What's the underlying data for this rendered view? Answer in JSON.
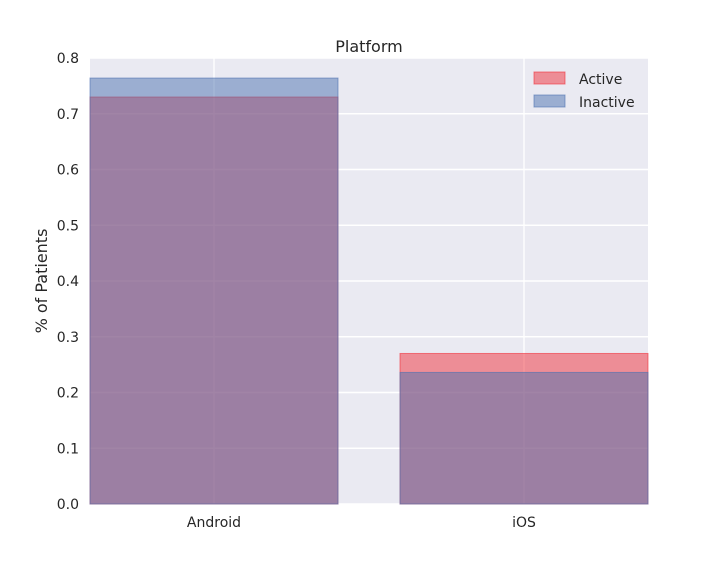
{
  "chart_data": {
    "type": "bar",
    "title": "Platform",
    "xlabel": "",
    "ylabel": "% of Patients",
    "categories": [
      "Android",
      "iOS"
    ],
    "ylim": [
      0.0,
      0.8
    ],
    "yticks": [
      "0.0",
      "0.1",
      "0.2",
      "0.3",
      "0.4",
      "0.5",
      "0.6",
      "0.7",
      "0.8"
    ],
    "grid": true,
    "legend_position": "top-right",
    "series": [
      {
        "name": "Active",
        "values": [
          0.73,
          0.27
        ],
        "color": "#f0303a"
      },
      {
        "name": "Inactive",
        "values": [
          0.764,
          0.236
        ],
        "color": "#4c72b0"
      }
    ],
    "background": "#eaeaf2"
  }
}
